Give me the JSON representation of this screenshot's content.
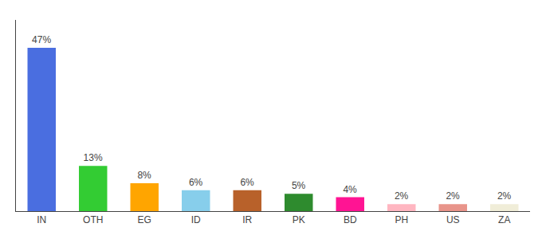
{
  "chart_data": {
    "type": "bar",
    "categories": [
      "IN",
      "OTH",
      "EG",
      "ID",
      "IR",
      "PK",
      "BD",
      "PH",
      "US",
      "ZA"
    ],
    "values": [
      47,
      13,
      8,
      6,
      6,
      5,
      4,
      2,
      2,
      2
    ],
    "value_labels": [
      "47%",
      "13%",
      "8%",
      "6%",
      "6%",
      "5%",
      "4%",
      "2%",
      "2%",
      "2%"
    ],
    "colors": [
      "#4A6EE0",
      "#33CC33",
      "#FFA500",
      "#87CEEB",
      "#B8612A",
      "#2E8B2E",
      "#FF1493",
      "#FFB6C1",
      "#E8948A",
      "#F0EDD8"
    ],
    "ylim": [
      0,
      55
    ],
    "data_labels": true,
    "tick_labels": "x",
    "grid": false
  }
}
